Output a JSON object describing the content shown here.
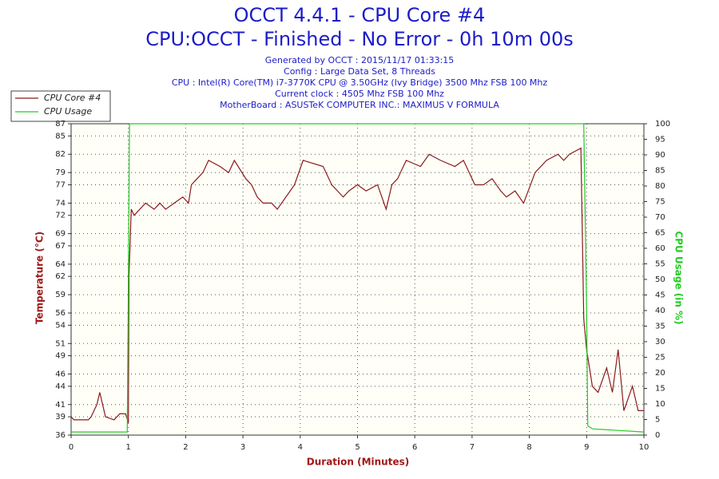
{
  "chart_data": {
    "type": "line",
    "title": "OCCT 4.4.1 - CPU Core #4",
    "subtitle": "CPU:OCCT - Finished - No Error - 0h 10m 00s",
    "info": [
      "Generated by OCCT : 2015/11/17 01:33:15",
      "Config : Large Data Set, 8 Threads",
      "CPU : Intel(R) Core(TM) i7-3770K CPU @ 3.50GHz (Ivy Bridge) 3500 Mhz FSB 100 Mhz",
      "Current clock : 4505 Mhz FSB 100 Mhz",
      "MotherBoard : ASUSTeK COMPUTER INC.: MAXIMUS V FORMULA"
    ],
    "xlabel": "Duration (Minutes)",
    "ylabel": "Temperature (°C)",
    "y2label": "CPU Usage (in %)",
    "xlim": [
      0,
      10
    ],
    "xticks": [
      0,
      1,
      2,
      3,
      4,
      5,
      6,
      7,
      8,
      9,
      10
    ],
    "ylim": [
      36,
      87
    ],
    "yticks": [
      36,
      39,
      41,
      44,
      46,
      49,
      51,
      54,
      56,
      59,
      62,
      64,
      67,
      69,
      72,
      74,
      77,
      79,
      82,
      85,
      87
    ],
    "y2lim": [
      0,
      100
    ],
    "y2ticks": [
      0,
      5,
      10,
      15,
      20,
      25,
      30,
      35,
      40,
      45,
      50,
      55,
      60,
      65,
      70,
      75,
      80,
      85,
      90,
      95,
      100
    ],
    "grid": true,
    "legend": "top-left",
    "series": [
      {
        "name": "CPU Core #4",
        "color": "#8b1a1a",
        "x": [
          0,
          0.05,
          0.3,
          0.35,
          0.4,
          0.45,
          0.5,
          0.55,
          0.6,
          0.75,
          0.85,
          0.95,
          1.0,
          1.01,
          1.05,
          1.1,
          1.2,
          1.3,
          1.45,
          1.55,
          1.65,
          1.8,
          1.95,
          2.05,
          2.1,
          2.2,
          2.3,
          2.4,
          2.6,
          2.75,
          2.85,
          3.05,
          3.15,
          3.25,
          3.35,
          3.5,
          3.6,
          3.75,
          3.9,
          4.05,
          4.4,
          4.55,
          4.65,
          4.75,
          4.85,
          5.0,
          5.15,
          5.35,
          5.5,
          5.6,
          5.7,
          5.85,
          6.1,
          6.25,
          6.45,
          6.7,
          6.85,
          7.05,
          7.2,
          7.35,
          7.5,
          7.6,
          7.75,
          7.9,
          8.1,
          8.3,
          8.5,
          8.6,
          8.7,
          8.9,
          8.95,
          9.0,
          9.1,
          9.2,
          9.35,
          9.45,
          9.55,
          9.65,
          9.8,
          9.9,
          10
        ],
        "values": [
          39,
          38.5,
          38.5,
          39,
          40,
          41,
          43,
          41,
          39,
          38.5,
          39.5,
          39.5,
          38,
          62,
          73,
          72,
          73,
          74,
          73,
          74,
          73,
          74,
          75,
          74,
          77,
          78,
          79,
          81,
          80,
          79,
          81,
          78,
          77,
          75,
          74,
          74,
          73,
          75,
          77,
          81,
          80,
          77,
          76,
          75,
          76,
          77,
          76,
          77,
          73,
          77,
          78,
          81,
          80,
          82,
          81,
          80,
          81,
          77,
          77,
          78,
          76,
          75,
          76,
          74,
          79,
          81,
          82,
          81,
          82,
          83,
          55,
          50,
          44,
          43,
          47,
          43,
          50,
          40,
          44,
          40,
          40
        ]
      },
      {
        "name": "CPU Usage",
        "color": "#22cc22",
        "axis": "y2",
        "x": [
          0,
          0.98,
          1.0,
          1.02,
          8.95,
          9.0,
          9.02,
          9.1,
          10
        ],
        "values": [
          1,
          1,
          50,
          100,
          100,
          40,
          3,
          2,
          1
        ]
      }
    ]
  }
}
